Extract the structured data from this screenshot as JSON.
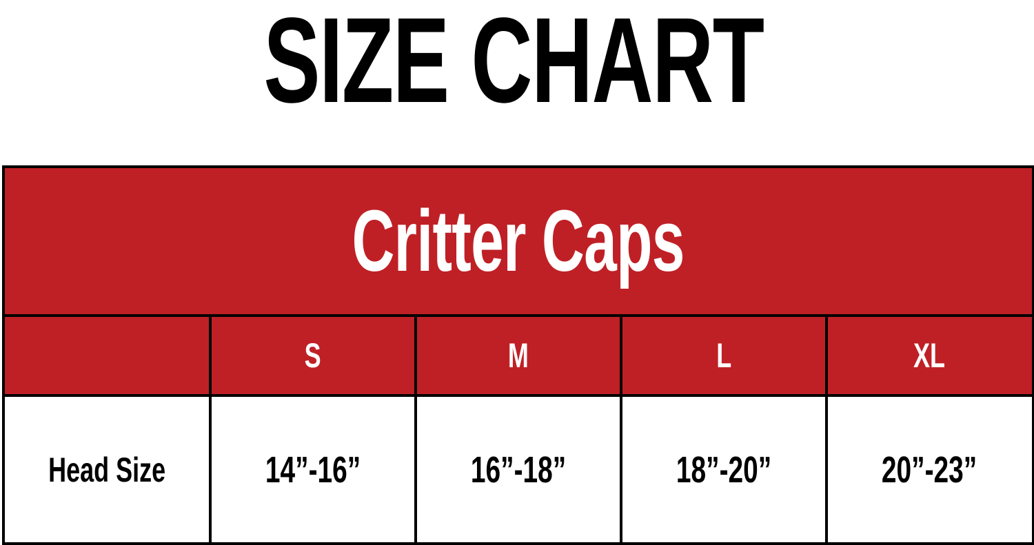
{
  "title": "SIZE CHART",
  "colors": {
    "header_red": "#bf2026",
    "border": "#000000",
    "text_dark": "#000000",
    "text_light": "#ffffff"
  },
  "table": {
    "brand": "Critter Caps",
    "header_corner": "",
    "sizes": [
      "S",
      "M",
      "L",
      "XL"
    ],
    "row_label": "Head Size",
    "values": [
      "14”-16”",
      "16”-18”",
      "18”-20”",
      "20”-23”"
    ]
  }
}
